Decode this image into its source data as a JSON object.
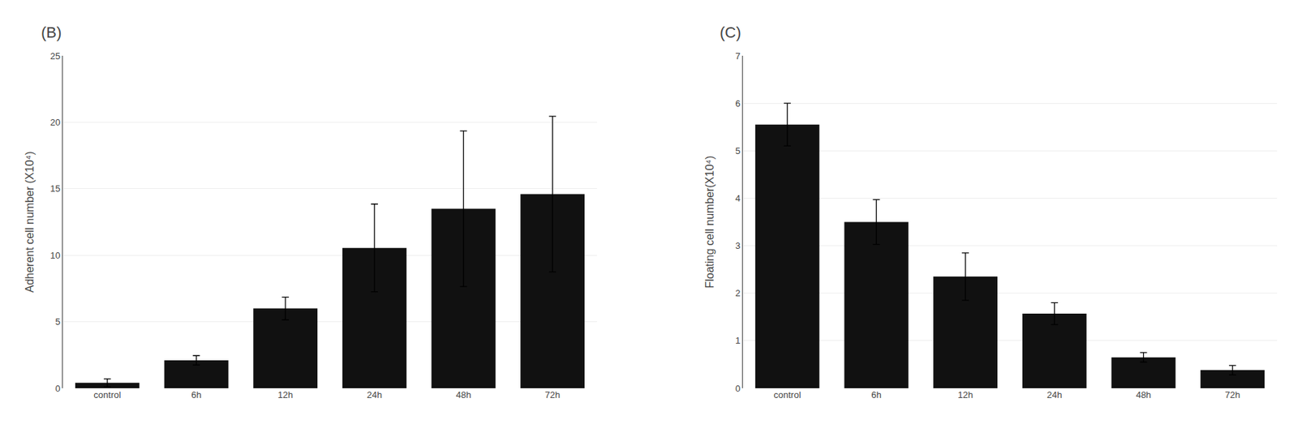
{
  "chart_data": [
    {
      "type": "bar",
      "title": "(B)",
      "categories": [
        "control",
        "6h",
        "12h",
        "24h",
        "48h",
        "72h"
      ],
      "values": [
        0.4,
        2.1,
        6.0,
        10.55,
        13.5,
        14.6
      ],
      "errors": [
        0.3,
        0.35,
        0.85,
        3.3,
        5.85,
        5.85
      ],
      "ylabel": "Adherent cell number (X10⁴)",
      "ylim": [
        0,
        25
      ],
      "yticks": [
        0,
        5,
        10,
        15,
        20,
        25
      ],
      "color": "#111111",
      "grid": true
    },
    {
      "type": "bar",
      "title": "(C)",
      "categories": [
        "control",
        "6h",
        "12h",
        "24h",
        "48h",
        "72h"
      ],
      "values": [
        5.55,
        3.5,
        2.35,
        1.57,
        0.65,
        0.38
      ],
      "errors": [
        0.45,
        0.47,
        0.5,
        0.23,
        0.1,
        0.1
      ],
      "ylabel": "Floating cell number(X10⁴)",
      "ylim": [
        0,
        7
      ],
      "yticks": [
        0,
        1,
        2,
        3,
        4,
        5,
        6,
        7
      ],
      "color": "#111111",
      "grid": true
    }
  ]
}
